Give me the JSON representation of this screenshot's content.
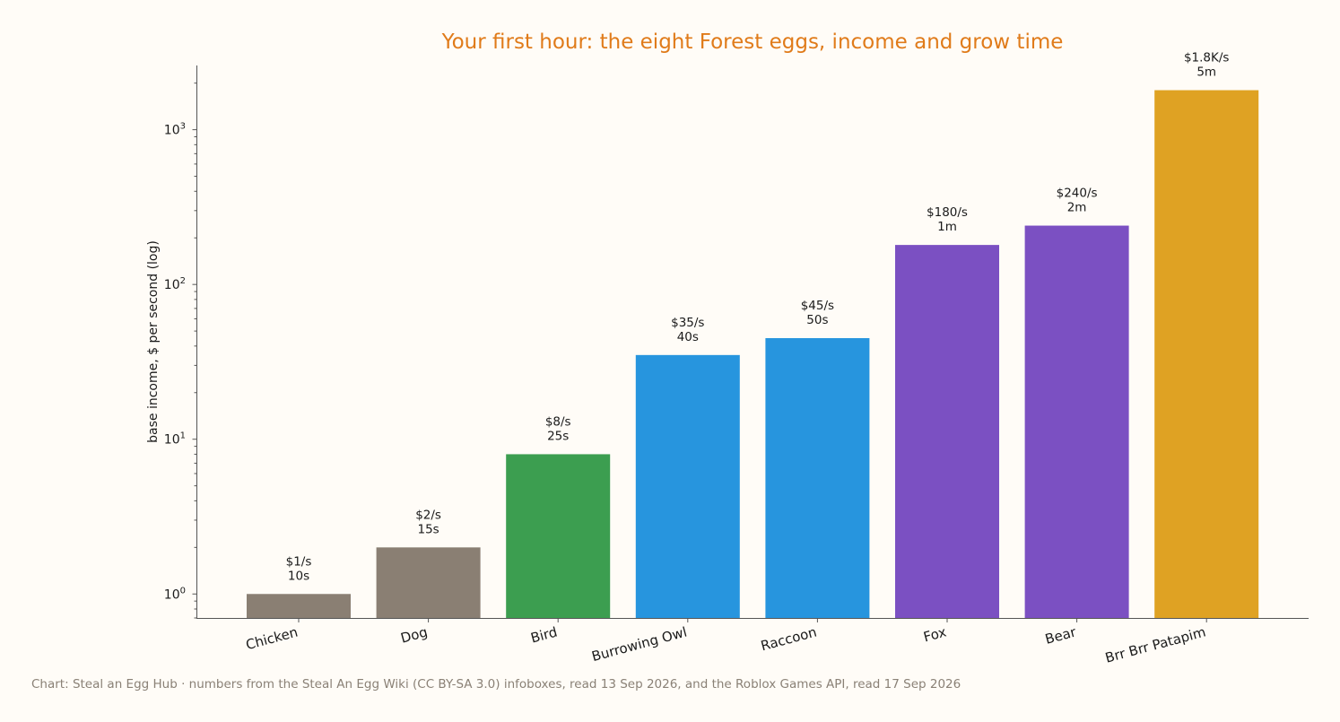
{
  "chart_data": {
    "type": "bar",
    "title": "Your first hour: the eight Forest eggs, income and grow time",
    "ylabel": "base income, $ per second (log)",
    "yscale": "log",
    "ylim": [
      0.7,
      2600
    ],
    "yticks": [
      {
        "value": 1,
        "base": "10",
        "exp": "0"
      },
      {
        "value": 10,
        "base": "10",
        "exp": "1"
      },
      {
        "value": 100,
        "base": "10",
        "exp": "2"
      },
      {
        "value": 1000,
        "base": "10",
        "exp": "3"
      }
    ],
    "categories": [
      "Chicken",
      "Dog",
      "Bird",
      "Burrowing Owl",
      "Raccoon",
      "Fox",
      "Bear",
      "Brr Brr Patapim"
    ],
    "values": [
      1,
      2,
      8,
      35,
      45,
      180,
      240,
      1800
    ],
    "income_labels": [
      "$1/s",
      "$2/s",
      "$8/s",
      "$35/s",
      "$45/s",
      "$180/s",
      "$240/s",
      "$1.8K/s"
    ],
    "time_labels": [
      "10s",
      "15s",
      "25s",
      "40s",
      "50s",
      "1m",
      "2m",
      "5m"
    ],
    "colors": [
      "#8a7f73",
      "#8a7f73",
      "#3c9e50",
      "#2795de",
      "#2795de",
      "#7b50c2",
      "#7b50c2",
      "#dfa223"
    ],
    "grid": false,
    "legend": "none"
  },
  "caption": "Chart: Steal an Egg Hub · numbers from the Steal An Egg Wiki (CC BY-SA 3.0) infoboxes, read 13 Sep 2026, and the Roblox Games API, read 17 Sep 2026"
}
